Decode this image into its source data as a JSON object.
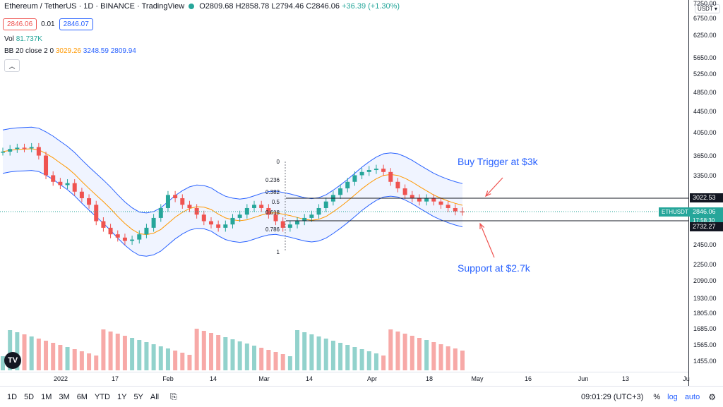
{
  "header": {
    "title": "Ethereum / TetherUS · 1D · BINANCE · TradingView",
    "open": "O2809.68",
    "high": "H2858.78",
    "low": "L2794.46",
    "close": "C2846.06",
    "change": "+36.39 (+1.30%)",
    "sell_value": "2846.06",
    "spread": "0.01",
    "buy_value": "2846.07",
    "vol_label": "Vol",
    "vol_value": "81.737K",
    "bb_label": "BB 20 close 2 0",
    "bb_basis": "3029.26",
    "bb_upper": "3248.59",
    "bb_lower": "2809.94"
  },
  "price_axis": {
    "currency": "USDT",
    "ticks": [
      "7250.00",
      "6750.00",
      "6250.00",
      "5650.00",
      "5250.00",
      "4850.00",
      "4450.00",
      "4050.00",
      "3650.00",
      "3350.00",
      "2450.00",
      "2250.00",
      "2090.00",
      "1930.00",
      "1805.00",
      "1685.00",
      "1565.00",
      "1455.00"
    ],
    "label_resistance": "3022.53",
    "label_symbol": "ETHUSDT",
    "label_price": "2846.06",
    "label_countdown": "17:58:30",
    "label_support": "2732.27"
  },
  "time_axis": {
    "ticks": [
      "2022",
      "17",
      "Feb",
      "14",
      "Mar",
      "14",
      "Apr",
      "18",
      "May",
      "16",
      "Jun",
      "13",
      "Ju"
    ]
  },
  "fib": {
    "levels": [
      "0",
      "0.236",
      "0.382",
      "0.5",
      "0.618",
      "0.786",
      "1"
    ]
  },
  "annotations": {
    "buy": "Buy Trigger at $3k",
    "support": "Support at $2.7k"
  },
  "bottom_bar": {
    "ranges": [
      "1D",
      "5D",
      "1M",
      "3M",
      "6M",
      "YTD",
      "1Y",
      "5Y",
      "All"
    ],
    "clock": "09:01:29 (UTC+3)",
    "percent": "%",
    "log": "log",
    "auto": "auto"
  },
  "colors": {
    "up": "#26a69a",
    "down": "#ef5350",
    "bb": "#2962ff",
    "basis": "#ff9800"
  },
  "chart_data": {
    "type": "candlestick",
    "symbol": "ETHUSDT",
    "last_close": 2846.06,
    "resistance": 3022.53,
    "support": 2732.27,
    "closes": [
      3760,
      3800,
      3820,
      3810,
      3830,
      3700,
      3400,
      3300,
      3250,
      3280,
      3150,
      3050,
      2950,
      2700,
      2600,
      2500,
      2450,
      2400,
      2420,
      2500,
      2600,
      2750,
      2900,
      3100,
      3050,
      2950,
      2900,
      2800,
      2700,
      2650,
      2600,
      2650,
      2750,
      2800,
      2900,
      2950,
      2900,
      2800,
      2700,
      2600,
      2650,
      2700,
      2750,
      2800,
      2900,
      3000,
      3100,
      3200,
      3300,
      3400,
      3450,
      3480,
      3500,
      3450,
      3300,
      3200,
      3100,
      3050,
      3000,
      3050,
      3000,
      2950,
      2900,
      2850,
      2846
    ]
  }
}
